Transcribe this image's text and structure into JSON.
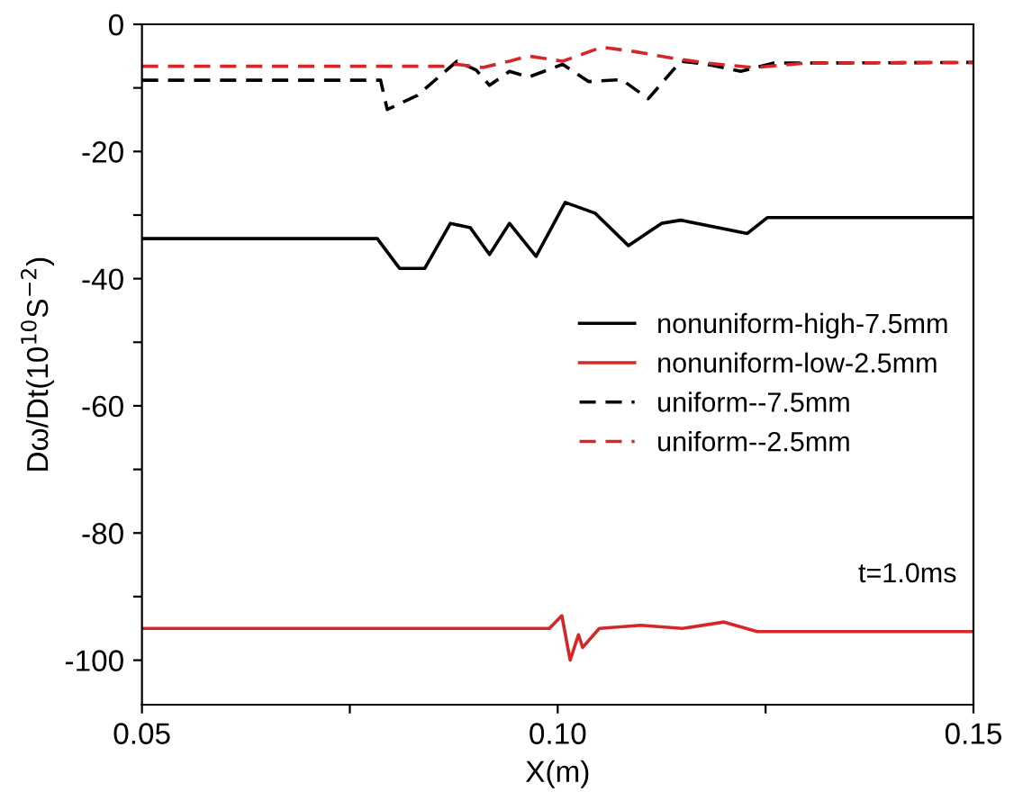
{
  "chart_data": {
    "type": "line",
    "xlabel": "X(m)",
    "ylabel": "Dω/Dt(10$^{10}$S$^{−2}$)",
    "xlim": [
      0.05,
      0.15
    ],
    "xticks": [
      {
        "value": 0.05,
        "label": "0.05"
      },
      {
        "value": 0.075,
        "label": null
      },
      {
        "value": 0.1,
        "label": "0.10"
      },
      {
        "value": 0.125,
        "label": null
      },
      {
        "value": 0.15,
        "label": "0.15"
      }
    ],
    "ylim": [
      -107,
      0
    ],
    "yticks": [
      0,
      {
        "value": -10,
        "label": null
      },
      -20,
      {
        "value": -30,
        "label": null
      },
      -40,
      {
        "value": -50,
        "label": null
      },
      -60,
      {
        "value": -70,
        "label": null
      },
      -80,
      {
        "value": -90,
        "label": null
      },
      -100
    ],
    "grid": false,
    "legend": "right",
    "marker": "none",
    "annotations": [
      "t=1.0ms"
    ],
    "series": [
      {
        "name": "nonuniform-high-7.5mm",
        "color": "#000000",
        "line_style": "solid",
        "x": [
          0.05,
          0.0783,
          0.081,
          0.084,
          0.0871,
          0.0895,
          0.0918,
          0.0942,
          0.0974,
          0.1009,
          0.1045,
          0.1085,
          0.1125,
          0.1148,
          0.1228,
          0.1252,
          0.15
        ],
        "values": [
          -33.7,
          -33.7,
          -38.4,
          -38.4,
          -31.3,
          -32,
          -36.2,
          -31.3,
          -36.5,
          -28,
          -29.7,
          -34.8,
          -31.3,
          -30.8,
          -32.9,
          -30.4,
          -30.4
        ]
      },
      {
        "name": "nonuniform-low-2.5mm",
        "color": "#d62728",
        "line_style": "solid",
        "x": [
          0.05,
          0.099,
          0.1005,
          0.1015,
          0.1025,
          0.103,
          0.105,
          0.11,
          0.115,
          0.12,
          0.124,
          0.15
        ],
        "values": [
          -95,
          -95,
          -93,
          -100,
          -96,
          -98,
          -95,
          -94.5,
          -95,
          -94,
          -95.5,
          -95.5
        ]
      },
      {
        "name": "uniform--7.5mm",
        "color": "#000000",
        "line_style": "dashed",
        "x": [
          0.05,
          0.0787,
          0.0795,
          0.0831,
          0.0879,
          0.0902,
          0.0918,
          0.0942,
          0.0965,
          0.1006,
          0.1037,
          0.1077,
          0.1109,
          0.1148,
          0.118,
          0.122,
          0.126,
          0.15
        ],
        "values": [
          -8.8,
          -8.8,
          -13.4,
          -11.2,
          -5.8,
          -7.2,
          -9.6,
          -7.4,
          -8.3,
          -6.3,
          -9,
          -8.7,
          -11.7,
          -5.8,
          -6.3,
          -7.4,
          -6.1,
          -6
        ]
      },
      {
        "name": "uniform--2.5mm",
        "color": "#d62728",
        "line_style": "dashed",
        "x": [
          0.05,
          0.0863,
          0.0879,
          0.091,
          0.0942,
          0.0965,
          0.1006,
          0.1053,
          0.1093,
          0.1141,
          0.118,
          0.1236,
          0.1299,
          0.15
        ],
        "values": [
          -6.6,
          -6.6,
          -6.3,
          -6.8,
          -5.8,
          -5,
          -5.8,
          -3.6,
          -4.3,
          -5.4,
          -6.1,
          -6.8,
          -6.1,
          -6
        ]
      }
    ]
  }
}
